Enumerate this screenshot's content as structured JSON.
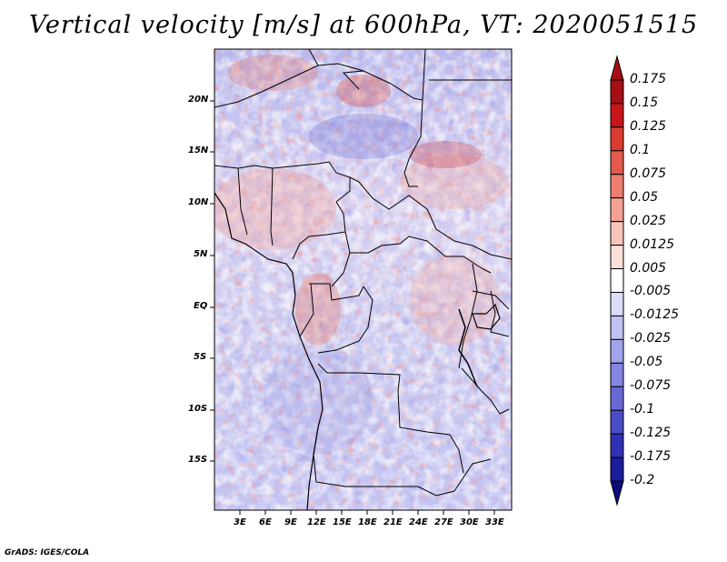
{
  "title": "Vertical velocity [m/s] at 600hPa, VT: 2020051515",
  "footer": "GrADS: IGES/COLA",
  "map": {
    "lat_labels": [
      "20N",
      "15N",
      "10N",
      "5N",
      "EQ",
      "5S",
      "10S",
      "15S"
    ],
    "lon_labels": [
      "3E",
      "6E",
      "9E",
      "12E",
      "15E",
      "18E",
      "21E",
      "24E",
      "27E",
      "30E",
      "33E"
    ]
  },
  "legend": {
    "labels": [
      "0.175",
      "0.15",
      "0.125",
      "0.1",
      "0.075",
      "0.05",
      "0.025",
      "0.0125",
      "0.005",
      "-0.005",
      "-0.0125",
      "-0.025",
      "-0.05",
      "-0.075",
      "-0.1",
      "-0.125",
      "-0.175",
      "-0.2"
    ],
    "colors": [
      "#a50f15",
      "#c8161b",
      "#dc3b30",
      "#e55a4f",
      "#ed7d71",
      "#f4a295",
      "#f8c5bb",
      "#fbe0da",
      "#ffffff",
      "#dcdcfa",
      "#c2c2f3",
      "#a3a3ec",
      "#8585e2",
      "#6868d6",
      "#4b4bc8",
      "#3030b4",
      "#1c1c9c",
      "#0d0d7a"
    ]
  }
}
